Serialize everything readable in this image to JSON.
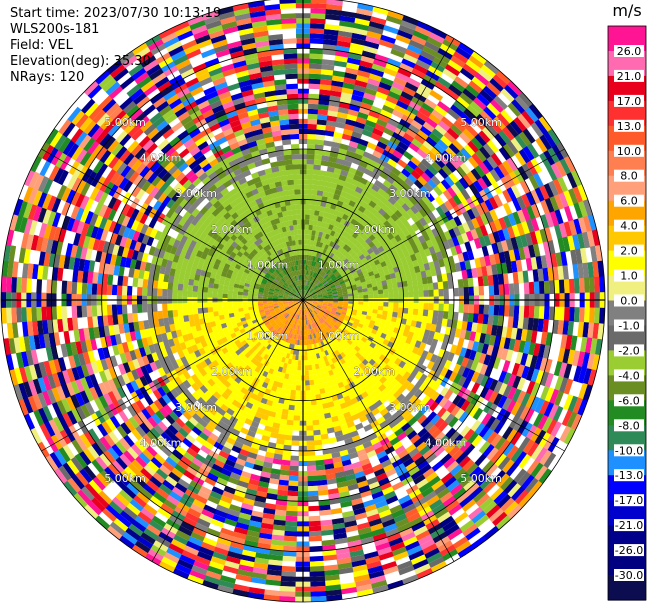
{
  "header": {
    "start_time": "Start time: 2023/07/30 10:13:19",
    "instrument": "WLS200s-181",
    "field": "Field: VEL",
    "elevation": "Elevation(deg): 35.30",
    "nrays": "NRays: 120"
  },
  "chart_data": {
    "type": "heatmap",
    "projection": "polar-ppi",
    "field": "VEL",
    "units": "m/s",
    "start_time": "2023/07/30 10:13:19",
    "instrument": "WLS200s-181",
    "elevation_deg": 35.3,
    "n_rays": 120,
    "max_range_km": 6.0,
    "range_rings_km": [
      1,
      2,
      3,
      4,
      5,
      6
    ],
    "range_ring_labels": [
      "1.00km",
      "2.00km",
      "3.00km",
      "4.00km",
      "5.00km"
    ],
    "colorbar": {
      "label": "m/s",
      "range": [
        -30.0,
        30.0
      ],
      "ticks": [
        "26.0",
        "21.0",
        "17.0",
        "13.0",
        "10.0",
        "8.0",
        "6.0",
        "4.0",
        "2.0",
        "1.0",
        "0.0",
        "-1.0",
        "-2.0",
        "-4.0",
        "-6.0",
        "-8.0",
        "-10.0",
        "-13.0",
        "-17.0",
        "-21.0",
        "-26.0",
        "-30.0"
      ],
      "colors": [
        "#ff1493",
        "#ff6ab0",
        "#e8001c",
        "#ff3030",
        "#ff5a2a",
        "#ff7f50",
        "#ffa07a",
        "#ffa500",
        "#ffc800",
        "#ffff00",
        "#f0f080",
        "#808080",
        "#6a6a6a",
        "#9acd32",
        "#6b8e23",
        "#228b22",
        "#2e8b57",
        "#1e90ff",
        "#0000ff",
        "#0000cd",
        "#00008b",
        "#000080",
        "#0c0c50"
      ]
    },
    "structure_notes": {
      "inner_core_km": 0.85,
      "near_zero_band_km": [
        0.85,
        2.6
      ],
      "noise_beyond_km": 3.2
    }
  }
}
